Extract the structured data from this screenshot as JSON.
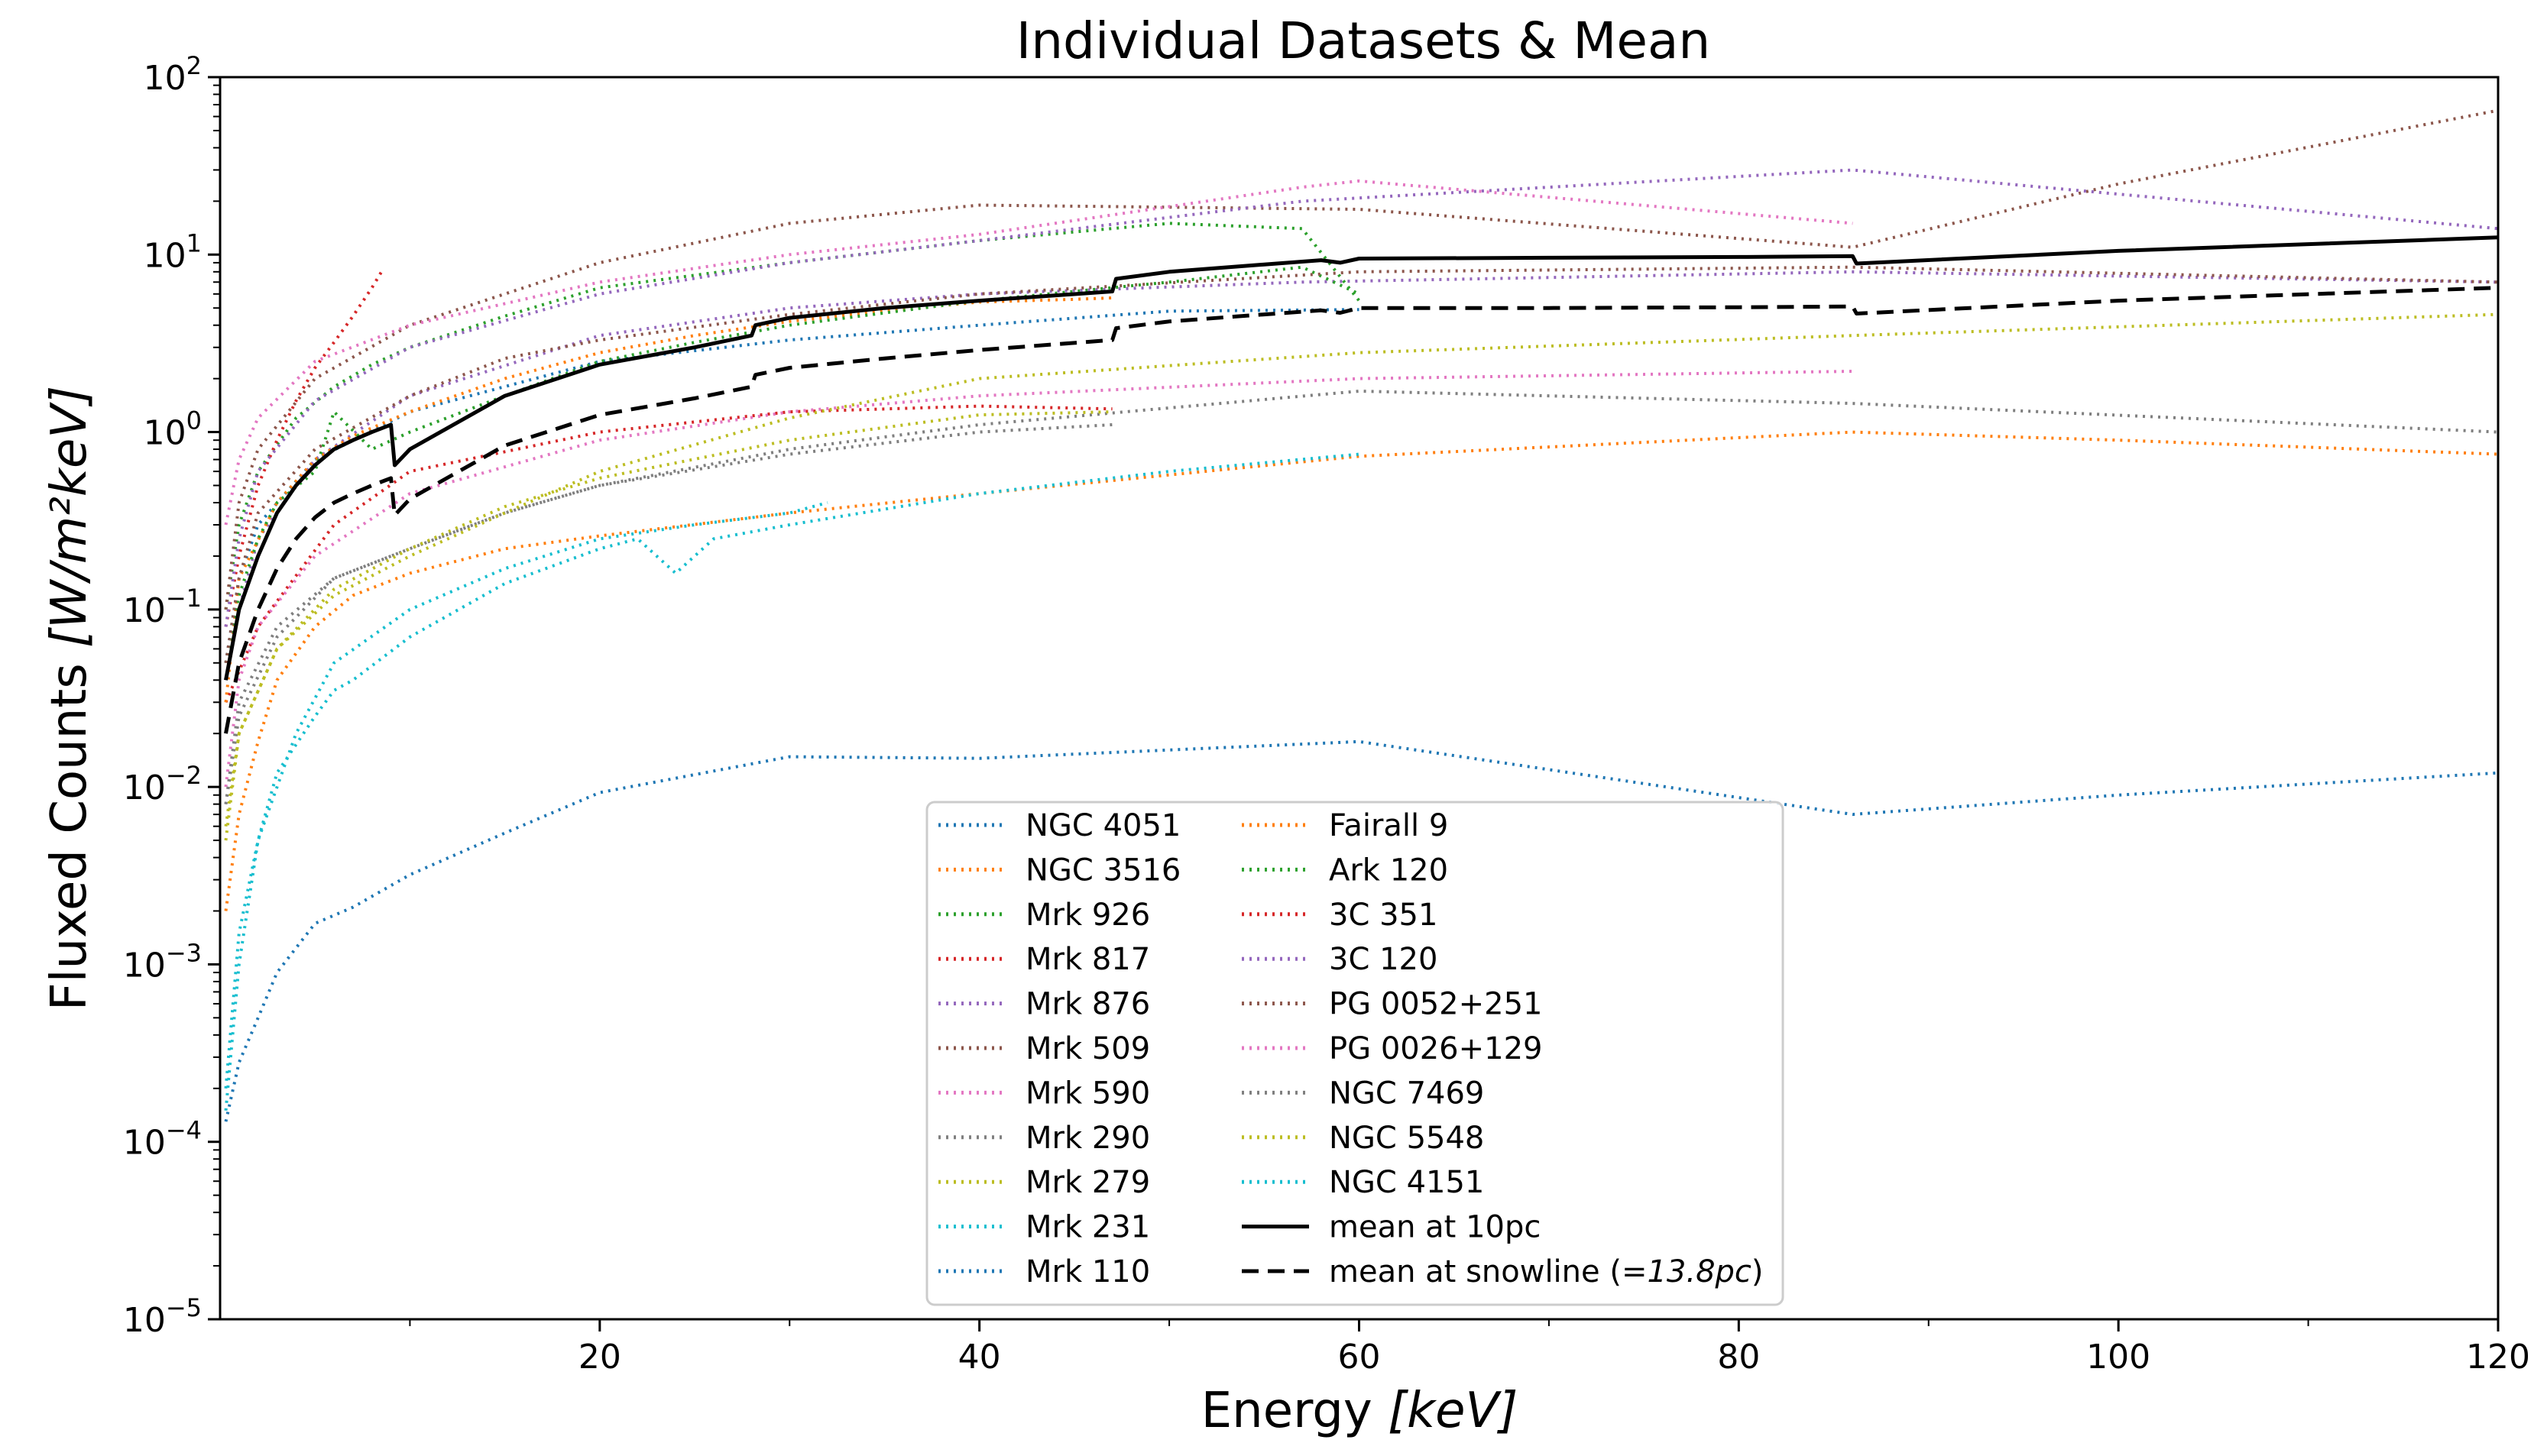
{
  "chart_data": {
    "type": "line",
    "title": "Individual Datasets & Mean",
    "xlabel_main": "Energy ",
    "xlabel_unit": "[keV]",
    "ylabel_main": "Fluxed Counts ",
    "ylabel_unit": "[W/m²keV]",
    "xlim": [
      0,
      120
    ],
    "ylim": [
      1e-05,
      100
    ],
    "yscale": "log",
    "xticks": [
      20,
      40,
      60,
      80,
      100,
      120
    ],
    "yticks": [
      {
        "base": "10",
        "exp": "−5"
      },
      {
        "base": "10",
        "exp": "−4"
      },
      {
        "base": "10",
        "exp": "−3"
      },
      {
        "base": "10",
        "exp": "−2"
      },
      {
        "base": "10",
        "exp": "−1"
      },
      {
        "base": "10",
        "exp": "0"
      },
      {
        "base": "10",
        "exp": "1"
      },
      {
        "base": "10",
        "exp": "2"
      }
    ],
    "legend_position": "lower-center",
    "series": [
      {
        "name": "NGC 4051",
        "color": "#1f77b4",
        "style": "dotted",
        "x": [
          0.3,
          1,
          2,
          3,
          5,
          7,
          10,
          15,
          20,
          30,
          40,
          60,
          86,
          100,
          120
        ],
        "y": [
          0.00013,
          0.00028,
          0.0005,
          0.0009,
          0.0017,
          0.0021,
          0.0032,
          0.0055,
          0.0093,
          0.0148,
          0.0145,
          0.018,
          0.007,
          0.009,
          0.012
        ]
      },
      {
        "name": "NGC 3516",
        "color": "#ff7f0e",
        "style": "dotted",
        "x": [
          0.3,
          1,
          2,
          3,
          5,
          7,
          10,
          15,
          20,
          30,
          40,
          60,
          86,
          100,
          120
        ],
        "y": [
          0.002,
          0.007,
          0.018,
          0.04,
          0.08,
          0.12,
          0.16,
          0.22,
          0.26,
          0.35,
          0.45,
          0.73,
          1.0,
          0.9,
          0.75
        ]
      },
      {
        "name": "Mrk 926",
        "color": "#2ca02c",
        "style": "dotted",
        "x": [
          0.3,
          1,
          2,
          4,
          6,
          8,
          10,
          15,
          20,
          30,
          40,
          50,
          57,
          60
        ],
        "y": [
          0.1,
          0.3,
          0.6,
          1.2,
          1.8,
          2.4,
          3.0,
          4.5,
          6.5,
          9.0,
          12.0,
          15.0,
          14.0,
          5.5
        ]
      },
      {
        "name": "Mrk 817",
        "color": "#d62728",
        "style": "dotted",
        "x": [
          0.3,
          2,
          6,
          10,
          20,
          30,
          40,
          47
        ],
        "y": [
          0.03,
          0.08,
          0.3,
          0.6,
          1.0,
          1.3,
          1.4,
          1.35
        ]
      },
      {
        "name": "Mrk 876",
        "color": "#9467bd",
        "style": "dotted",
        "x": [
          0.3,
          1,
          2,
          5,
          10,
          20,
          30,
          40,
          57,
          86,
          120
        ],
        "y": [
          0.04,
          0.1,
          0.25,
          0.7,
          1.6,
          3.5,
          5.0,
          6.0,
          7.0,
          8.0,
          7.0
        ]
      },
      {
        "name": "Mrk 509",
        "color": "#8c564b",
        "style": "dotted",
        "x": [
          0.3,
          1,
          2,
          5,
          10,
          20,
          30,
          40,
          60,
          86,
          100,
          120
        ],
        "y": [
          0.1,
          0.4,
          0.8,
          2.0,
          4.0,
          9.0,
          15.0,
          19.0,
          18.0,
          11.0,
          25.0,
          65.0
        ]
      },
      {
        "name": "Mrk 590",
        "color": "#e377c2",
        "style": "dotted",
        "x": [
          0.3,
          1,
          2,
          5,
          10,
          20,
          30,
          40,
          60,
          86
        ],
        "y": [
          0.01,
          0.04,
          0.08,
          0.2,
          0.45,
          0.9,
          1.3,
          1.6,
          2.0,
          2.2
        ]
      },
      {
        "name": "Mrk 290",
        "color": "#7f7f7f",
        "style": "dotted",
        "x": [
          0.3,
          1,
          3,
          6,
          10,
          15,
          20,
          30,
          40,
          60,
          86,
          120
        ],
        "y": [
          0.008,
          0.03,
          0.08,
          0.15,
          0.22,
          0.35,
          0.5,
          0.8,
          1.1,
          1.7,
          1.45,
          1.0
        ]
      },
      {
        "name": "Mrk 279",
        "color": "#bcbd22",
        "style": "dotted",
        "x": [
          0.3,
          1,
          3,
          6,
          10,
          15,
          20,
          30,
          40,
          60,
          86,
          120
        ],
        "y": [
          0.005,
          0.02,
          0.06,
          0.12,
          0.2,
          0.35,
          0.6,
          1.2,
          2.0,
          2.8,
          3.5,
          4.6
        ]
      },
      {
        "name": "Mrk 231",
        "color": "#17becf",
        "style": "dotted",
        "x": [
          0.3,
          1,
          2,
          3,
          5,
          6,
          7,
          10,
          15,
          20,
          22,
          24,
          26,
          30,
          40,
          50,
          60
        ],
        "y": [
          0.00015,
          0.001,
          0.005,
          0.012,
          0.025,
          0.035,
          0.04,
          0.07,
          0.14,
          0.22,
          0.25,
          0.16,
          0.25,
          0.3,
          0.45,
          0.6,
          0.75
        ]
      },
      {
        "name": "Mrk 110",
        "color": "#1f77b4",
        "style": "dotted",
        "x": [
          0.3,
          1,
          2,
          5,
          10,
          20,
          30,
          40,
          50,
          60
        ],
        "y": [
          0.05,
          0.15,
          0.3,
          0.7,
          1.3,
          2.5,
          3.3,
          4.0,
          4.8,
          4.9
        ]
      },
      {
        "name": "Fairall 9",
        "color": "#ff7f0e",
        "style": "dotted",
        "x": [
          0.3,
          1,
          3,
          5,
          7,
          10,
          15,
          20,
          25,
          30,
          35,
          40,
          45,
          47
        ],
        "y": [
          0.03,
          0.15,
          0.4,
          0.7,
          0.95,
          1.3,
          2.0,
          2.8,
          3.5,
          4.2,
          4.8,
          5.4,
          5.6,
          5.7
        ]
      },
      {
        "name": "Ark 120",
        "color": "#2ca02c",
        "style": "dotted",
        "x": [
          0.3,
          1,
          2,
          3,
          5,
          6,
          8,
          10,
          15,
          20,
          25,
          30,
          40,
          50,
          57,
          60
        ],
        "y": [
          0.05,
          0.12,
          0.25,
          0.4,
          0.6,
          1.3,
          0.8,
          1.0,
          1.6,
          2.5,
          3.2,
          4.0,
          5.5,
          7.0,
          8.5,
          6.0
        ]
      },
      {
        "name": "3C 351",
        "color": "#d62728",
        "style": "dotted",
        "x": [
          0.3,
          1,
          2,
          3,
          4,
          5,
          6,
          7,
          8,
          8.5
        ],
        "y": [
          0.08,
          0.2,
          0.5,
          0.9,
          1.5,
          2.3,
          3.2,
          4.5,
          6.5,
          8.0
        ]
      },
      {
        "name": "3C 120",
        "color": "#9467bd",
        "style": "dotted",
        "x": [
          0.3,
          1,
          2,
          5,
          10,
          20,
          30,
          40,
          57,
          86,
          120
        ],
        "y": [
          0.08,
          0.25,
          0.6,
          1.5,
          3.0,
          6.0,
          9.0,
          12.0,
          20.0,
          30.0,
          14.0
        ]
      },
      {
        "name": "PG 0052+251",
        "color": "#8c564b",
        "style": "dotted",
        "x": [
          0.3,
          1,
          2,
          5,
          10,
          15,
          20,
          30,
          40,
          60,
          86,
          120
        ],
        "y": [
          0.05,
          0.15,
          0.35,
          0.8,
          1.6,
          2.6,
          3.3,
          4.6,
          6.0,
          8.0,
          8.5,
          7.0
        ]
      },
      {
        "name": "PG 0026+129",
        "color": "#e377c2",
        "style": "dotted",
        "x": [
          0.3,
          1,
          2,
          5,
          10,
          20,
          30,
          40,
          57,
          60,
          86
        ],
        "y": [
          0.3,
          0.7,
          1.2,
          2.5,
          4.0,
          7.0,
          10.0,
          13.0,
          24.0,
          26.0,
          15.0
        ]
      },
      {
        "name": "NGC 7469",
        "color": "#7f7f7f",
        "style": "dotted",
        "x": [
          0.3,
          1,
          3,
          6,
          10,
          15,
          20,
          30,
          40,
          47
        ],
        "y": [
          0.008,
          0.025,
          0.07,
          0.15,
          0.22,
          0.35,
          0.5,
          0.75,
          1.0,
          1.1
        ]
      },
      {
        "name": "NGC 5548",
        "color": "#bcbd22",
        "style": "dotted",
        "x": [
          0.3,
          1,
          3,
          6,
          10,
          15,
          20,
          30,
          40,
          47
        ],
        "y": [
          0.006,
          0.02,
          0.06,
          0.13,
          0.22,
          0.38,
          0.55,
          0.9,
          1.25,
          1.3
        ]
      },
      {
        "name": "NGC 4151",
        "color": "#17becf",
        "style": "dotted",
        "x": [
          0.3,
          1,
          2,
          4,
          6,
          10,
          15,
          20,
          25,
          30,
          32
        ],
        "y": [
          0.0002,
          0.0015,
          0.005,
          0.02,
          0.05,
          0.1,
          0.17,
          0.25,
          0.3,
          0.35,
          0.4
        ]
      },
      {
        "name": "mean at 10pc",
        "color": "#000000",
        "style": "solid",
        "x": [
          0.3,
          1,
          2,
          3,
          4,
          5,
          6,
          7,
          8,
          9,
          9.2,
          10,
          15,
          20,
          25,
          28,
          28.2,
          30,
          35,
          40,
          47,
          47.2,
          50,
          55,
          58,
          59,
          60,
          70,
          80,
          86,
          86.2,
          100,
          120
        ],
        "y": [
          0.04,
          0.1,
          0.2,
          0.35,
          0.5,
          0.65,
          0.8,
          0.9,
          1.0,
          1.1,
          0.65,
          0.8,
          1.6,
          2.4,
          3.0,
          3.5,
          4.0,
          4.4,
          5.0,
          5.5,
          6.2,
          7.3,
          8.0,
          8.8,
          9.3,
          9.0,
          9.5,
          9.6,
          9.7,
          9.8,
          8.9,
          10.5,
          12.5
        ]
      },
      {
        "name": "mean at snowline ($=13.8pc$)",
        "color": "#000000",
        "style": "dashed",
        "x": [
          0.3,
          1,
          2,
          3,
          4,
          5,
          6,
          7,
          8,
          9,
          9.2,
          10,
          15,
          20,
          25,
          28,
          28.2,
          30,
          35,
          40,
          47,
          47.2,
          50,
          55,
          58,
          59,
          60,
          70,
          80,
          86,
          86.2,
          100,
          120
        ],
        "y": [
          0.02,
          0.05,
          0.1,
          0.17,
          0.25,
          0.33,
          0.4,
          0.45,
          0.5,
          0.55,
          0.34,
          0.42,
          0.84,
          1.25,
          1.55,
          1.8,
          2.1,
          2.3,
          2.6,
          2.9,
          3.3,
          3.85,
          4.2,
          4.6,
          4.85,
          4.7,
          5.0,
          5.0,
          5.05,
          5.1,
          4.65,
          5.5,
          6.5
        ]
      }
    ]
  }
}
